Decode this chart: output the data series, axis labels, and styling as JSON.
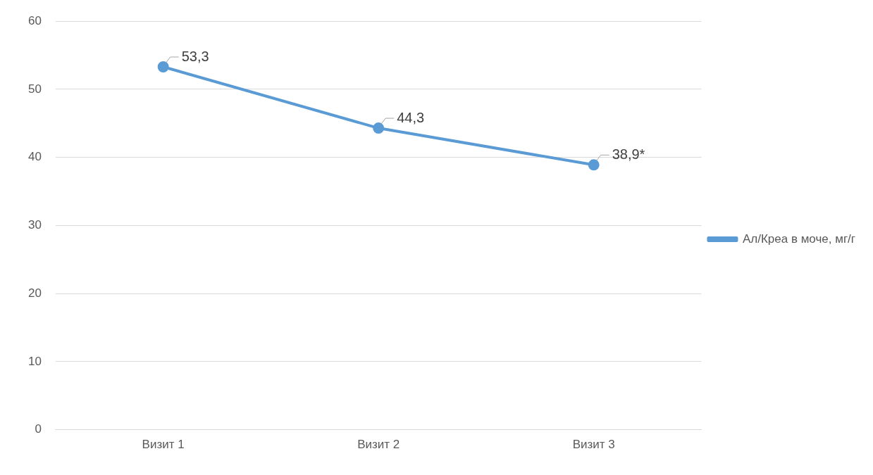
{
  "chart_data": {
    "type": "line",
    "categories": [
      "Визит 1",
      "Визит 2",
      "Визит 3"
    ],
    "series": [
      {
        "name": "Ал/Креа в моче, мг/г",
        "color": "#5b9bd5",
        "values": [
          53.3,
          44.3,
          38.9
        ],
        "value_labels": [
          "53,3",
          "44,3",
          "38,9*"
        ]
      }
    ],
    "ylim": [
      0,
      60
    ],
    "yticks": [
      0,
      10,
      20,
      30,
      40,
      50,
      60
    ],
    "grid": "y",
    "legend": "right",
    "marker": "circle",
    "line_style": "solid"
  }
}
